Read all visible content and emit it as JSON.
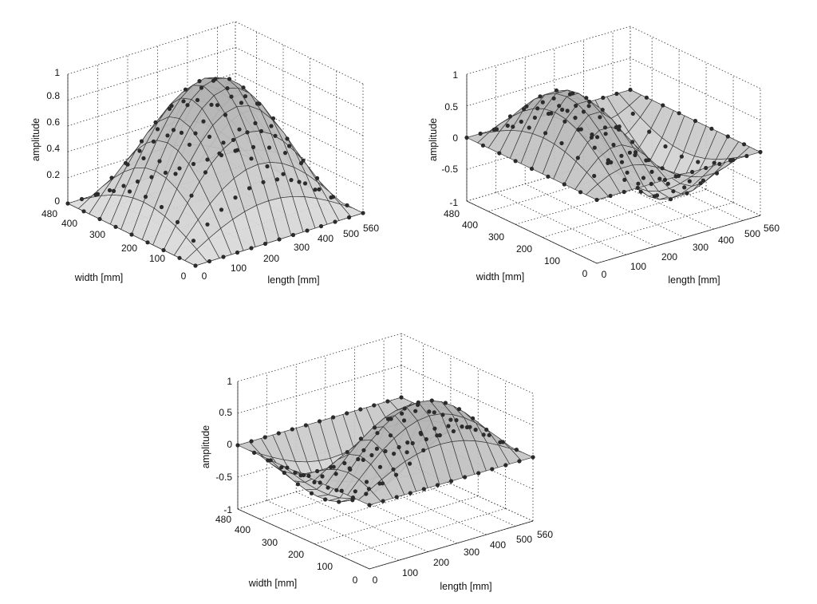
{
  "chart_data": [
    {
      "type": "surface",
      "title": "",
      "xlabel": "length [mm]",
      "ylabel": "width [mm]",
      "zlabel": "amplitude",
      "xlim": [
        0,
        560
      ],
      "ylim": [
        0,
        480
      ],
      "zlim": [
        0,
        1
      ],
      "x_ticks": [
        "0",
        "100",
        "200",
        "300",
        "400",
        "500",
        "560"
      ],
      "y_ticks": [
        "0",
        "100",
        "200",
        "300",
        "400",
        "480"
      ],
      "z_ticks": [
        "0",
        "0.2",
        "0.4",
        "0.6",
        "0.8",
        "1"
      ],
      "mode": [
        1,
        1
      ],
      "grid": true,
      "surface_color": "#cfcfcf",
      "marker_color": "#2b2b2b"
    },
    {
      "type": "surface",
      "title": "",
      "xlabel": "length [mm]",
      "ylabel": "width [mm]",
      "zlabel": "amplitude",
      "xlim": [
        0,
        560
      ],
      "ylim": [
        0,
        480
      ],
      "zlim": [
        -1,
        1
      ],
      "x_ticks": [
        "0",
        "100",
        "200",
        "300",
        "400",
        "500",
        "560"
      ],
      "y_ticks": [
        "0",
        "100",
        "200",
        "300",
        "400",
        "480"
      ],
      "z_ticks": [
        "-1",
        "-0.5",
        "0",
        "0.5",
        "1"
      ],
      "mode": [
        2,
        1
      ],
      "grid": true,
      "surface_color": "#cfcfcf",
      "marker_color": "#2b2b2b"
    },
    {
      "type": "surface",
      "title": "",
      "xlabel": "length [mm]",
      "ylabel": "width [mm]",
      "zlabel": "amplitude",
      "xlim": [
        0,
        560
      ],
      "ylim": [
        0,
        480
      ],
      "zlim": [
        -1,
        1
      ],
      "x_ticks": [
        "0",
        "100",
        "200",
        "300",
        "400",
        "500",
        "560"
      ],
      "y_ticks": [
        "0",
        "100",
        "200",
        "300",
        "400",
        "480"
      ],
      "z_ticks": [
        "-1",
        "-0.5",
        "0",
        "0.5",
        "1"
      ],
      "mode": [
        1,
        2
      ],
      "grid": true,
      "surface_color": "#cfcfcf",
      "marker_color": "#2b2b2b"
    }
  ]
}
